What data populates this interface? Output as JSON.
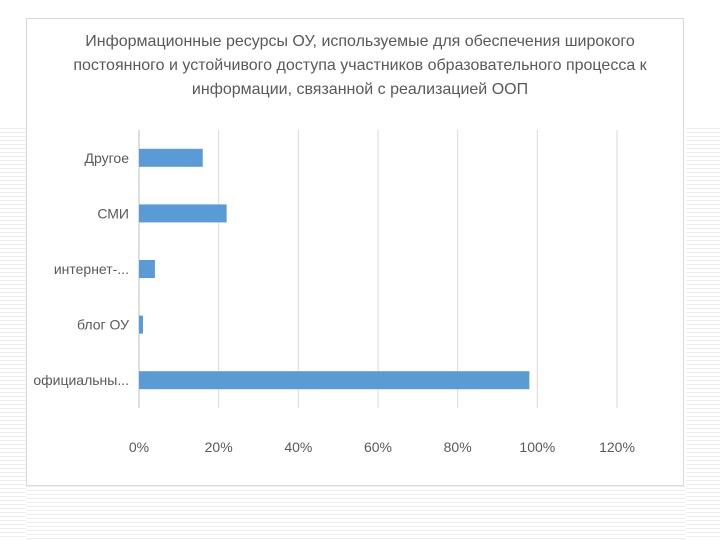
{
  "chart_data": {
    "type": "bar",
    "orientation": "horizontal",
    "title": [
      "Информационные ресурсы ОУ, используемые для обеспечения широкого",
      "постоянного и устойчивого доступа участников образовательного процесса к",
      "информации, связанной с реализацией ООП"
    ],
    "categories": [
      "официальны...",
      "блог ОУ",
      "интернет-...",
      "СМИ",
      "Другое"
    ],
    "values": [
      98,
      1,
      4,
      22,
      16
    ],
    "value_unit": "%",
    "xlim": [
      0,
      120
    ],
    "x_ticks": [
      "0%",
      "20%",
      "40%",
      "60%",
      "80%",
      "100%",
      "120%"
    ],
    "grid": true,
    "legend": "none",
    "bar_color": "#5b9bd5",
    "grid_color": "#d9d9d9"
  }
}
